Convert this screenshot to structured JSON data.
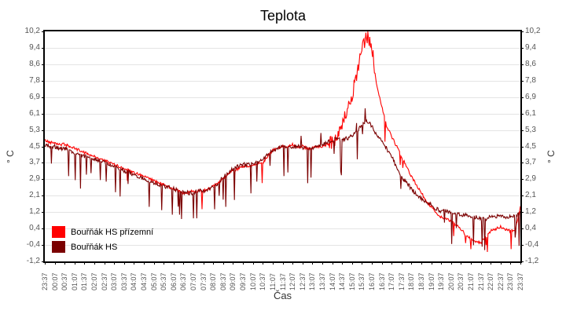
{
  "title": "Teplota",
  "axes": {
    "x_label": "Čas",
    "y_left_label": "° C",
    "y_right_label": "° C"
  },
  "legend": [
    {
      "label": "Bouřňák HS přízemní",
      "color": "#ff0000"
    },
    {
      "label": "Bouřňák HS",
      "color": "#7b0000"
    }
  ],
  "chart_data": {
    "type": "line",
    "title": "Teplota",
    "xlabel": "Čas",
    "ylabel": "° C",
    "ylim": [
      -1.2,
      10.2
    ],
    "grid": "horizontal",
    "legend_position": "bottom-left-inside",
    "y_tick_labels": [
      "10,2",
      "9,4",
      "8,6",
      "7,8",
      "6,9",
      "6,1",
      "5,3",
      "4,5",
      "3,7",
      "2,9",
      "2,1",
      "1,2",
      "0,4",
      "-0,4",
      "-1,2"
    ],
    "x_tick_labels": [
      "23:37",
      "00:07",
      "00:37",
      "01:07",
      "01:37",
      "02:07",
      "02:37",
      "03:07",
      "03:37",
      "04:07",
      "04:37",
      "05:07",
      "05:37",
      "06:07",
      "06:37",
      "07:07",
      "07:37",
      "08:07",
      "08:37",
      "09:07",
      "09:37",
      "10:07",
      "10:37",
      "11:07",
      "11:37",
      "12:07",
      "12:37",
      "13:07",
      "13:37",
      "14:07",
      "14:37",
      "15:07",
      "15:37",
      "16:07",
      "16:37",
      "17:07",
      "17:37",
      "18:07",
      "18:37",
      "19:07",
      "19:37",
      "20:07",
      "20:37",
      "21:07",
      "21:37",
      "22:07",
      "22:37",
      "23:07",
      "23:37"
    ],
    "x_start_label": "23:37",
    "x_total_minutes": 1440,
    "x_sample_interval_minutes": 15,
    "series": [
      {
        "name": "Bouřňák HS přízemní",
        "color": "#ff0000",
        "values": [
          4.8,
          4.7,
          4.7,
          4.6,
          4.6,
          4.5,
          4.4,
          4.3,
          4.2,
          4.1,
          4.0,
          3.9,
          3.8,
          3.7,
          3.6,
          3.5,
          3.4,
          3.3,
          3.2,
          3.1,
          3.0,
          2.9,
          2.8,
          2.7,
          2.6,
          2.5,
          2.4,
          2.3,
          2.2,
          2.2,
          2.3,
          2.3,
          2.3,
          2.4,
          2.5,
          2.7,
          2.9,
          3.1,
          3.3,
          3.4,
          3.5,
          3.5,
          3.6,
          3.6,
          3.7,
          4.0,
          4.3,
          4.4,
          4.5,
          4.5,
          4.6,
          4.5,
          4.5,
          4.4,
          4.4,
          4.5,
          4.5,
          4.6,
          4.7,
          5.0,
          5.5,
          6.2,
          7.0,
          8.0,
          9.3,
          10.0,
          9.4,
          7.5,
          6.5,
          5.5,
          5.0,
          4.5,
          4.0,
          3.5,
          3.0,
          2.6,
          2.2,
          1.8,
          1.5,
          1.2,
          1.0,
          0.9,
          0.8,
          0.6,
          0.4,
          0.1,
          -0.1,
          -0.2,
          -0.3,
          0.0,
          0.3,
          0.4,
          0.5,
          0.4,
          0.3,
          0.4,
          1.5
        ]
      },
      {
        "name": "Bouřňák HS",
        "color": "#7b0000",
        "values": [
          4.6,
          4.5,
          4.5,
          4.4,
          4.4,
          4.3,
          4.2,
          4.1,
          4.0,
          3.9,
          3.9,
          3.8,
          3.7,
          3.6,
          3.5,
          3.4,
          3.3,
          3.2,
          3.1,
          3.0,
          2.9,
          2.8,
          2.7,
          2.6,
          2.5,
          2.5,
          2.4,
          2.3,
          2.2,
          2.2,
          2.2,
          2.3,
          2.3,
          2.4,
          2.5,
          2.7,
          3.0,
          3.2,
          3.4,
          3.5,
          3.6,
          3.6,
          3.7,
          3.7,
          3.8,
          4.1,
          4.3,
          4.4,
          4.5,
          4.5,
          4.5,
          4.5,
          4.4,
          4.4,
          4.4,
          4.5,
          4.6,
          4.7,
          4.8,
          4.9,
          4.8,
          4.9,
          5.0,
          5.2,
          5.6,
          5.8,
          5.5,
          5.0,
          4.8,
          4.4,
          4.0,
          3.5,
          3.0,
          2.7,
          2.4,
          2.1,
          1.9,
          1.7,
          1.6,
          1.4,
          1.3,
          1.3,
          1.2,
          1.2,
          1.1,
          1.1,
          1.0,
          1.0,
          0.9,
          0.9,
          1.0,
          1.0,
          1.1,
          1.0,
          1.0,
          1.1,
          1.2
        ]
      }
    ],
    "noise_hints": {
      "seed": 42,
      "sample_minutes": 2,
      "series": [
        {
          "jitter": 0.07,
          "spike_prob": 0.008,
          "spike_amp": 1.2,
          "peak_window": [
            860,
            1000
          ],
          "peak_jitter": 0.38,
          "evening_from": 1030,
          "evening_spike_prob": 0.045,
          "evening_spike_amp": 1.0
        },
        {
          "jitter": 0.1,
          "spike_prob": 0.055,
          "spike_amp": 1.7,
          "up_spike_prob": 0.02,
          "up_spike_amp": 0.8
        }
      ]
    }
  }
}
